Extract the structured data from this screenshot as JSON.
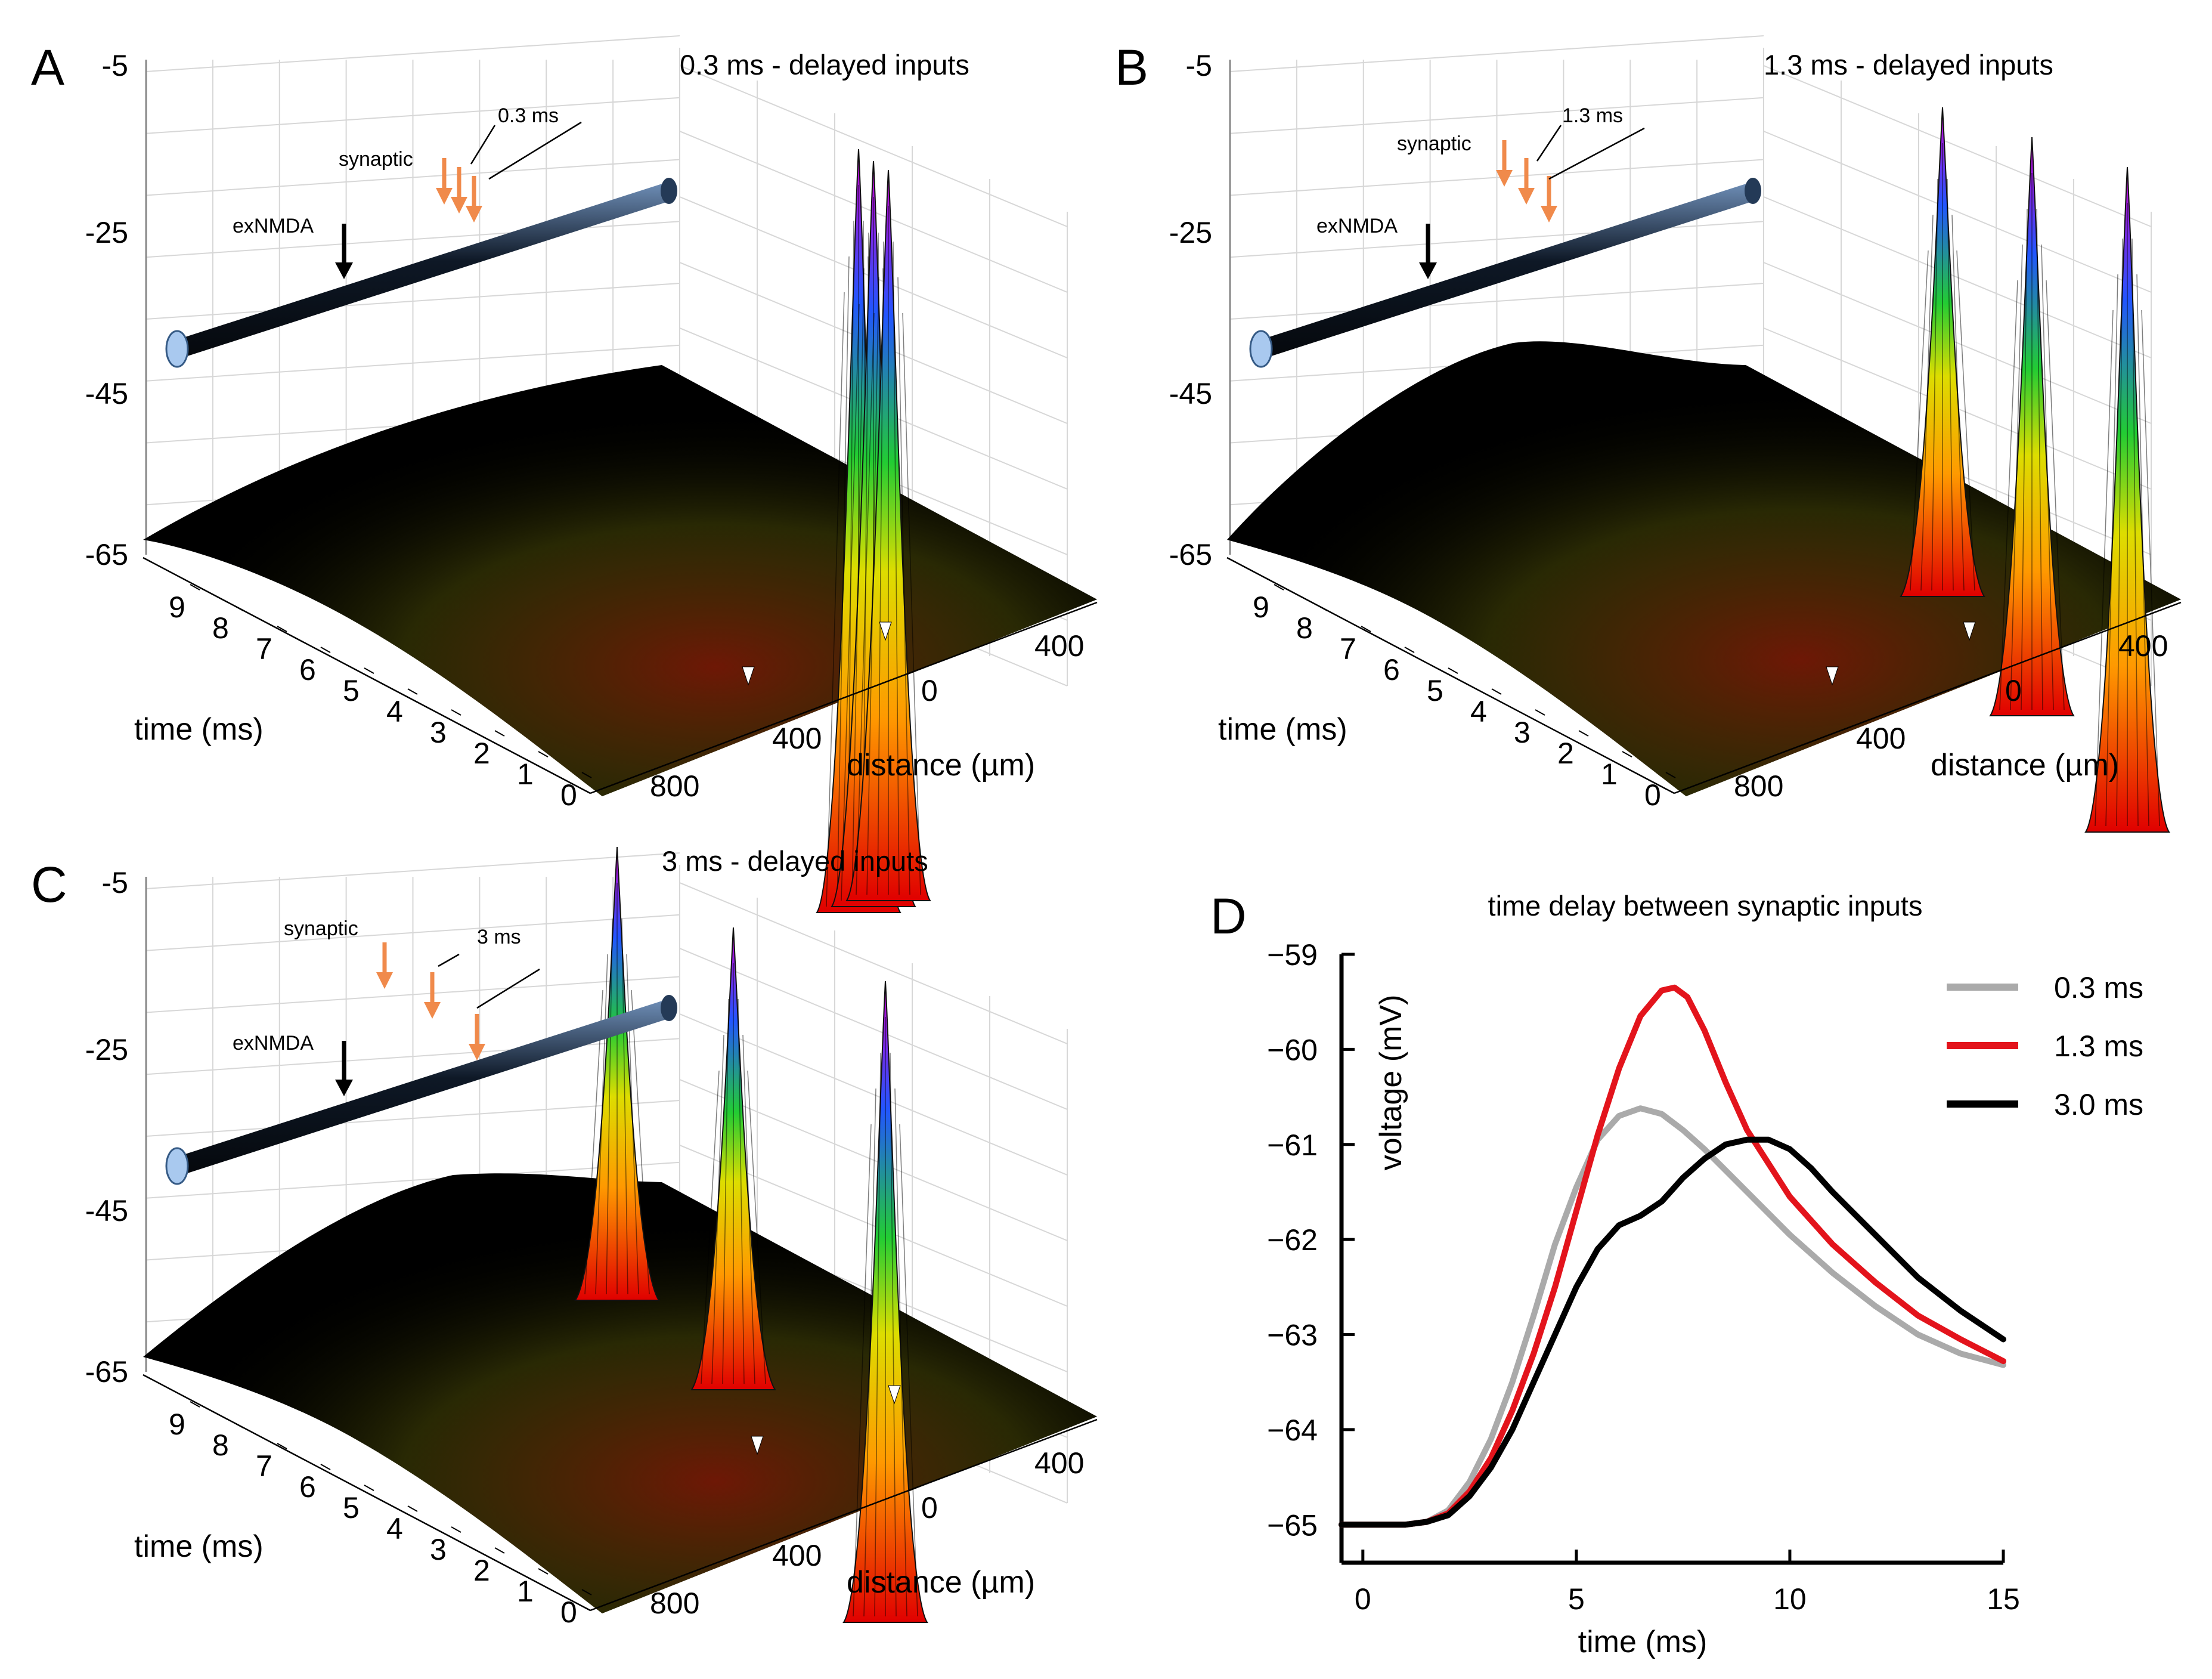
{
  "figure": {
    "panel_labels": [
      "A",
      "B",
      "C",
      "D"
    ]
  },
  "chart_data": [
    {
      "panel": "A",
      "type": "surface3d",
      "title": "0.3 ms - delayed inputs",
      "z_ticks": [
        "-5",
        "-25",
        "-45",
        "-65"
      ],
      "time_ticks": [
        "9",
        "8",
        "7",
        "6",
        "5",
        "4",
        "3",
        "2",
        "1",
        "0"
      ],
      "distance_ticks": [
        "800",
        "400",
        "0",
        "400"
      ],
      "xlabel": "time (ms)",
      "ylabel": "distance (µm)",
      "annotations": {
        "synaptic": "synaptic",
        "delay": "0.3 ms",
        "exnmda": "exNMDA"
      },
      "peaks": [
        {
          "time_ms": 2.6,
          "distance_um": 120,
          "voltage_mV": -9
        },
        {
          "time_ms": 2.9,
          "distance_um": 80,
          "voltage_mV": -10
        },
        {
          "time_ms": 3.2,
          "distance_um": 40,
          "voltage_mV": -11
        }
      ],
      "baseline_mV": -65
    },
    {
      "panel": "B",
      "type": "surface3d",
      "title": "1.3 ms - delayed inputs",
      "z_ticks": [
        "-5",
        "-25",
        "-45",
        "-65"
      ],
      "time_ticks": [
        "9",
        "8",
        "7",
        "6",
        "5",
        "4",
        "3",
        "2",
        "1",
        "0"
      ],
      "distance_ticks": [
        "800",
        "400",
        "0",
        "400"
      ],
      "xlabel": "time (ms)",
      "ylabel": "distance (µm)",
      "annotations": {
        "synaptic": "synaptic",
        "delay": "1.3 ms",
        "exnmda": "exNMDA"
      },
      "peaks": [
        {
          "time_ms": 2.6,
          "distance_um": 120,
          "voltage_mV": -11
        },
        {
          "time_ms": 3.9,
          "distance_um": 60,
          "voltage_mV": -13
        },
        {
          "time_ms": 5.2,
          "distance_um": 0,
          "voltage_mV": -12
        }
      ],
      "baseline_mV": -65
    },
    {
      "panel": "C",
      "type": "surface3d",
      "title": "3 ms - delayed inputs",
      "z_ticks": [
        "-5",
        "-25",
        "-45",
        "-65"
      ],
      "time_ticks": [
        "9",
        "8",
        "7",
        "6",
        "5",
        "4",
        "3",
        "2",
        "1",
        "0"
      ],
      "distance_ticks": [
        "800",
        "400",
        "0",
        "400"
      ],
      "xlabel": "time (ms)",
      "ylabel": "distance (µm)",
      "annotations": {
        "synaptic": "synaptic",
        "delay": "3 ms",
        "exnmda": "exNMDA"
      },
      "peaks": [
        {
          "time_ms": 2.6,
          "distance_um": 120,
          "voltage_mV": -11
        },
        {
          "time_ms": 5.6,
          "distance_um": 60,
          "voltage_mV": -10
        },
        {
          "time_ms": 8.6,
          "distance_um": 0,
          "voltage_mV": -12
        }
      ],
      "baseline_mV": -65
    },
    {
      "panel": "D",
      "type": "line",
      "title": "time delay between synaptic inputs",
      "xlabel": "time (ms)",
      "ylabel": "voltage (mV)",
      "xlim": [
        -0.5,
        15
      ],
      "ylim": [
        -65.4,
        -59
      ],
      "x_ticks": [
        0,
        5,
        10,
        15
      ],
      "y_ticks": [
        -59,
        -60,
        -61,
        -62,
        -63,
        -64,
        -65
      ],
      "legend_position": "top-right",
      "series": [
        {
          "name": "0.3 ms",
          "color": "#aaaaaa",
          "x": [
            -0.5,
            1.0,
            1.5,
            2.0,
            2.5,
            3.0,
            3.5,
            4.0,
            4.5,
            5.0,
            5.5,
            6.0,
            6.5,
            7.0,
            7.5,
            8.0,
            9.0,
            10.0,
            11.0,
            12.0,
            13.0,
            14.0,
            15.0
          ],
          "y": [
            -65.0,
            -65.0,
            -64.97,
            -64.85,
            -64.55,
            -64.1,
            -63.5,
            -62.8,
            -62.05,
            -61.45,
            -60.95,
            -60.7,
            -60.62,
            -60.68,
            -60.85,
            -61.05,
            -61.5,
            -61.95,
            -62.35,
            -62.7,
            -63.0,
            -63.2,
            -63.32
          ]
        },
        {
          "name": "1.3 ms",
          "color": "#e3141c",
          "x": [
            -0.5,
            1.0,
            1.5,
            2.0,
            2.5,
            3.0,
            3.5,
            4.0,
            4.5,
            5.0,
            5.5,
            6.0,
            6.5,
            7.0,
            7.3,
            7.6,
            8.0,
            8.5,
            9.0,
            10.0,
            11.0,
            12.0,
            13.0,
            14.0,
            15.0
          ],
          "y": [
            -65.0,
            -65.0,
            -64.97,
            -64.88,
            -64.65,
            -64.3,
            -63.8,
            -63.2,
            -62.5,
            -61.7,
            -60.9,
            -60.2,
            -59.65,
            -59.38,
            -59.35,
            -59.45,
            -59.8,
            -60.35,
            -60.85,
            -61.55,
            -62.05,
            -62.45,
            -62.8,
            -63.05,
            -63.28
          ]
        },
        {
          "name": "3.0 ms",
          "color": "#000000",
          "x": [
            -0.5,
            1.0,
            1.5,
            2.0,
            2.5,
            3.0,
            3.5,
            4.0,
            4.5,
            5.0,
            5.5,
            6.0,
            6.5,
            7.0,
            7.5,
            8.0,
            8.5,
            9.0,
            9.5,
            10.0,
            10.5,
            11.0,
            12.0,
            13.0,
            14.0,
            15.0
          ],
          "y": [
            -65.0,
            -65.0,
            -64.97,
            -64.9,
            -64.7,
            -64.4,
            -64.0,
            -63.5,
            -63.0,
            -62.5,
            -62.1,
            -61.85,
            -61.75,
            -61.6,
            -61.35,
            -61.15,
            -61.0,
            -60.95,
            -60.95,
            -61.05,
            -61.25,
            -61.5,
            -61.95,
            -62.4,
            -62.75,
            -63.05
          ]
        }
      ]
    }
  ]
}
